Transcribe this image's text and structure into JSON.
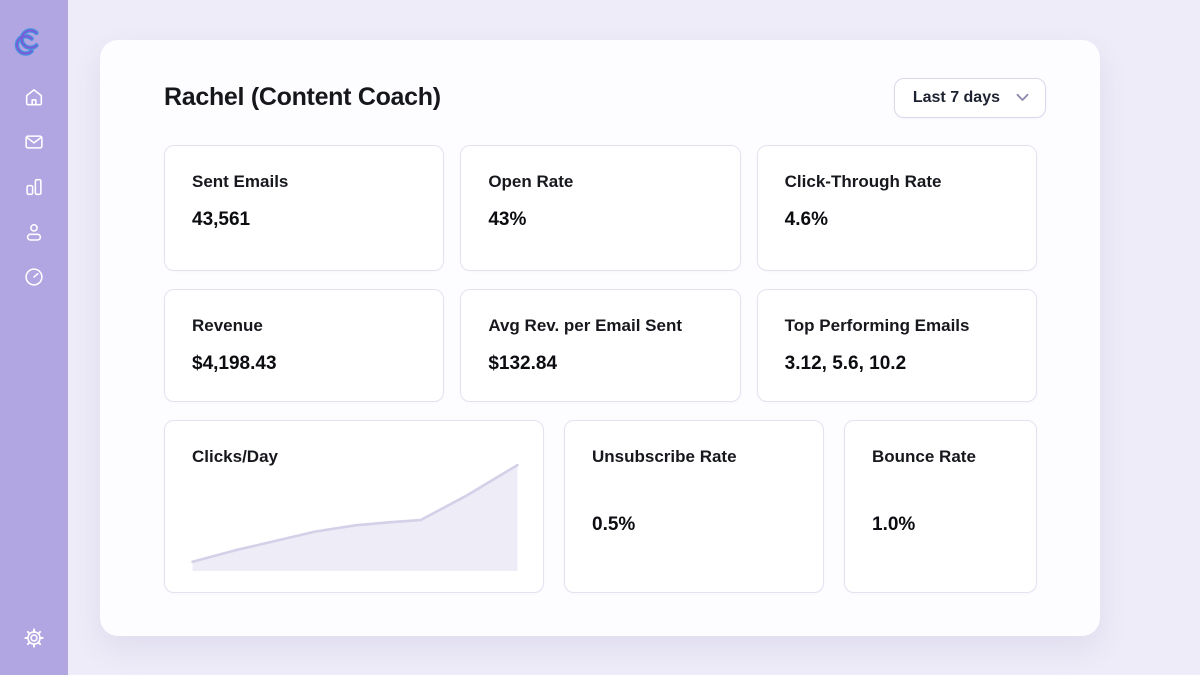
{
  "colors": {
    "sidebar_bg": "#b1a5e2",
    "app_bg": "#eeecf8",
    "surface_bg": "#fdfdff",
    "card_border": "#e5e2f0",
    "title_text": "#16171b",
    "logo_blue": "#4a8fdd",
    "logo_purple": "#7e57d8",
    "chart_line": "#d3d0e8",
    "chart_fill": "#edecf7",
    "icon_color": "#ffffff"
  },
  "sidebar": {
    "logo": "s-curve-logo",
    "items": [
      {
        "icon": "home-icon"
      },
      {
        "icon": "mail-icon"
      },
      {
        "icon": "bar-chart-icon"
      },
      {
        "icon": "person-icon"
      },
      {
        "icon": "clock-icon"
      }
    ],
    "settings_icon": "gear-icon"
  },
  "header": {
    "title": "Rachel (Content Coach)",
    "range_selector": {
      "value": "Last 7 days"
    }
  },
  "stats": {
    "cards": [
      {
        "label": "Sent Emails",
        "value": "43,561"
      },
      {
        "label": "Open Rate",
        "value": "43%"
      },
      {
        "label": "Click-Through Rate",
        "value": "4.6%"
      },
      {
        "label": "Revenue",
        "value": "$4,198.43"
      },
      {
        "label": "Avg Rev. per Email Sent",
        "value": "$132.84"
      },
      {
        "label": "Top Performing Emails",
        "value": "3.12, 5.6, 10.2"
      }
    ]
  },
  "bottom": {
    "clicks": {
      "label": "Clicks/Day"
    },
    "unsubscribe": {
      "label": "Unsubscribe Rate",
      "value": "0.5%"
    },
    "bounce": {
      "label": "Bounce Rate",
      "value": "1.0%"
    }
  },
  "chart_data": {
    "type": "area",
    "title": "Clicks/Day",
    "x": [
      0,
      43,
      83,
      123,
      163,
      198,
      228,
      273,
      325
    ],
    "values": [
      9,
      20,
      29,
      38,
      44,
      47,
      49,
      72,
      102
    ],
    "note": "relative clicks per day, no axes or tick labels shown",
    "xlabel": "",
    "ylabel": "",
    "grid": false,
    "legend": false
  }
}
